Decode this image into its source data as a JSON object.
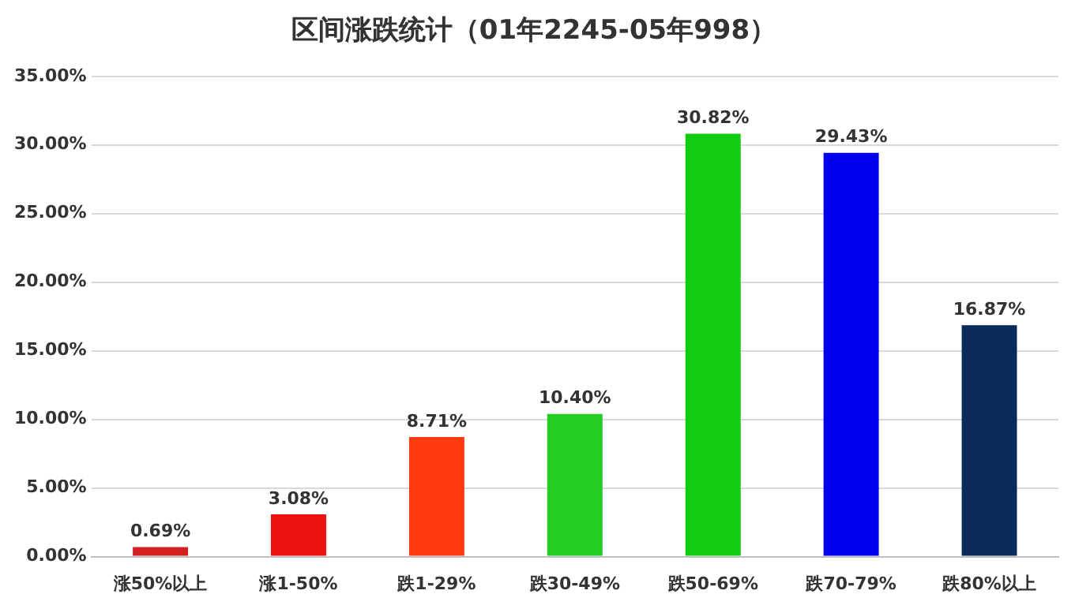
{
  "chart_data": {
    "type": "bar",
    "title": "区间涨跌统计（01年2245-05年998）",
    "categories": [
      "涨50%以上",
      "涨1-50%",
      "跌1-29%",
      "跌30-49%",
      "跌50-69%",
      "跌70-79%",
      "跌80%以上"
    ],
    "values": [
      0.69,
      3.08,
      8.71,
      10.4,
      30.82,
      29.43,
      16.87
    ],
    "colors": [
      "#d42020",
      "#ee1111",
      "#ff3a10",
      "#22cc22",
      "#11cc11",
      "#0000ee",
      "#0a2a5a"
    ],
    "value_labels": [
      "0.69%",
      "3.08%",
      "8.71%",
      "10.40%",
      "30.82%",
      "29.43%",
      "16.87%"
    ],
    "ylim": [
      0,
      35
    ],
    "yticks": [
      {
        "value": 0,
        "label": "0.00%"
      },
      {
        "value": 5,
        "label": "5.00%"
      },
      {
        "value": 10,
        "label": "10.00%"
      },
      {
        "value": 15,
        "label": "15.00%"
      },
      {
        "value": 20,
        "label": "20.00%"
      },
      {
        "value": 25,
        "label": "25.00%"
      },
      {
        "value": 30,
        "label": "30.00%"
      },
      {
        "value": 35,
        "label": "35.00%"
      }
    ],
    "grid": "y",
    "legend": false
  }
}
